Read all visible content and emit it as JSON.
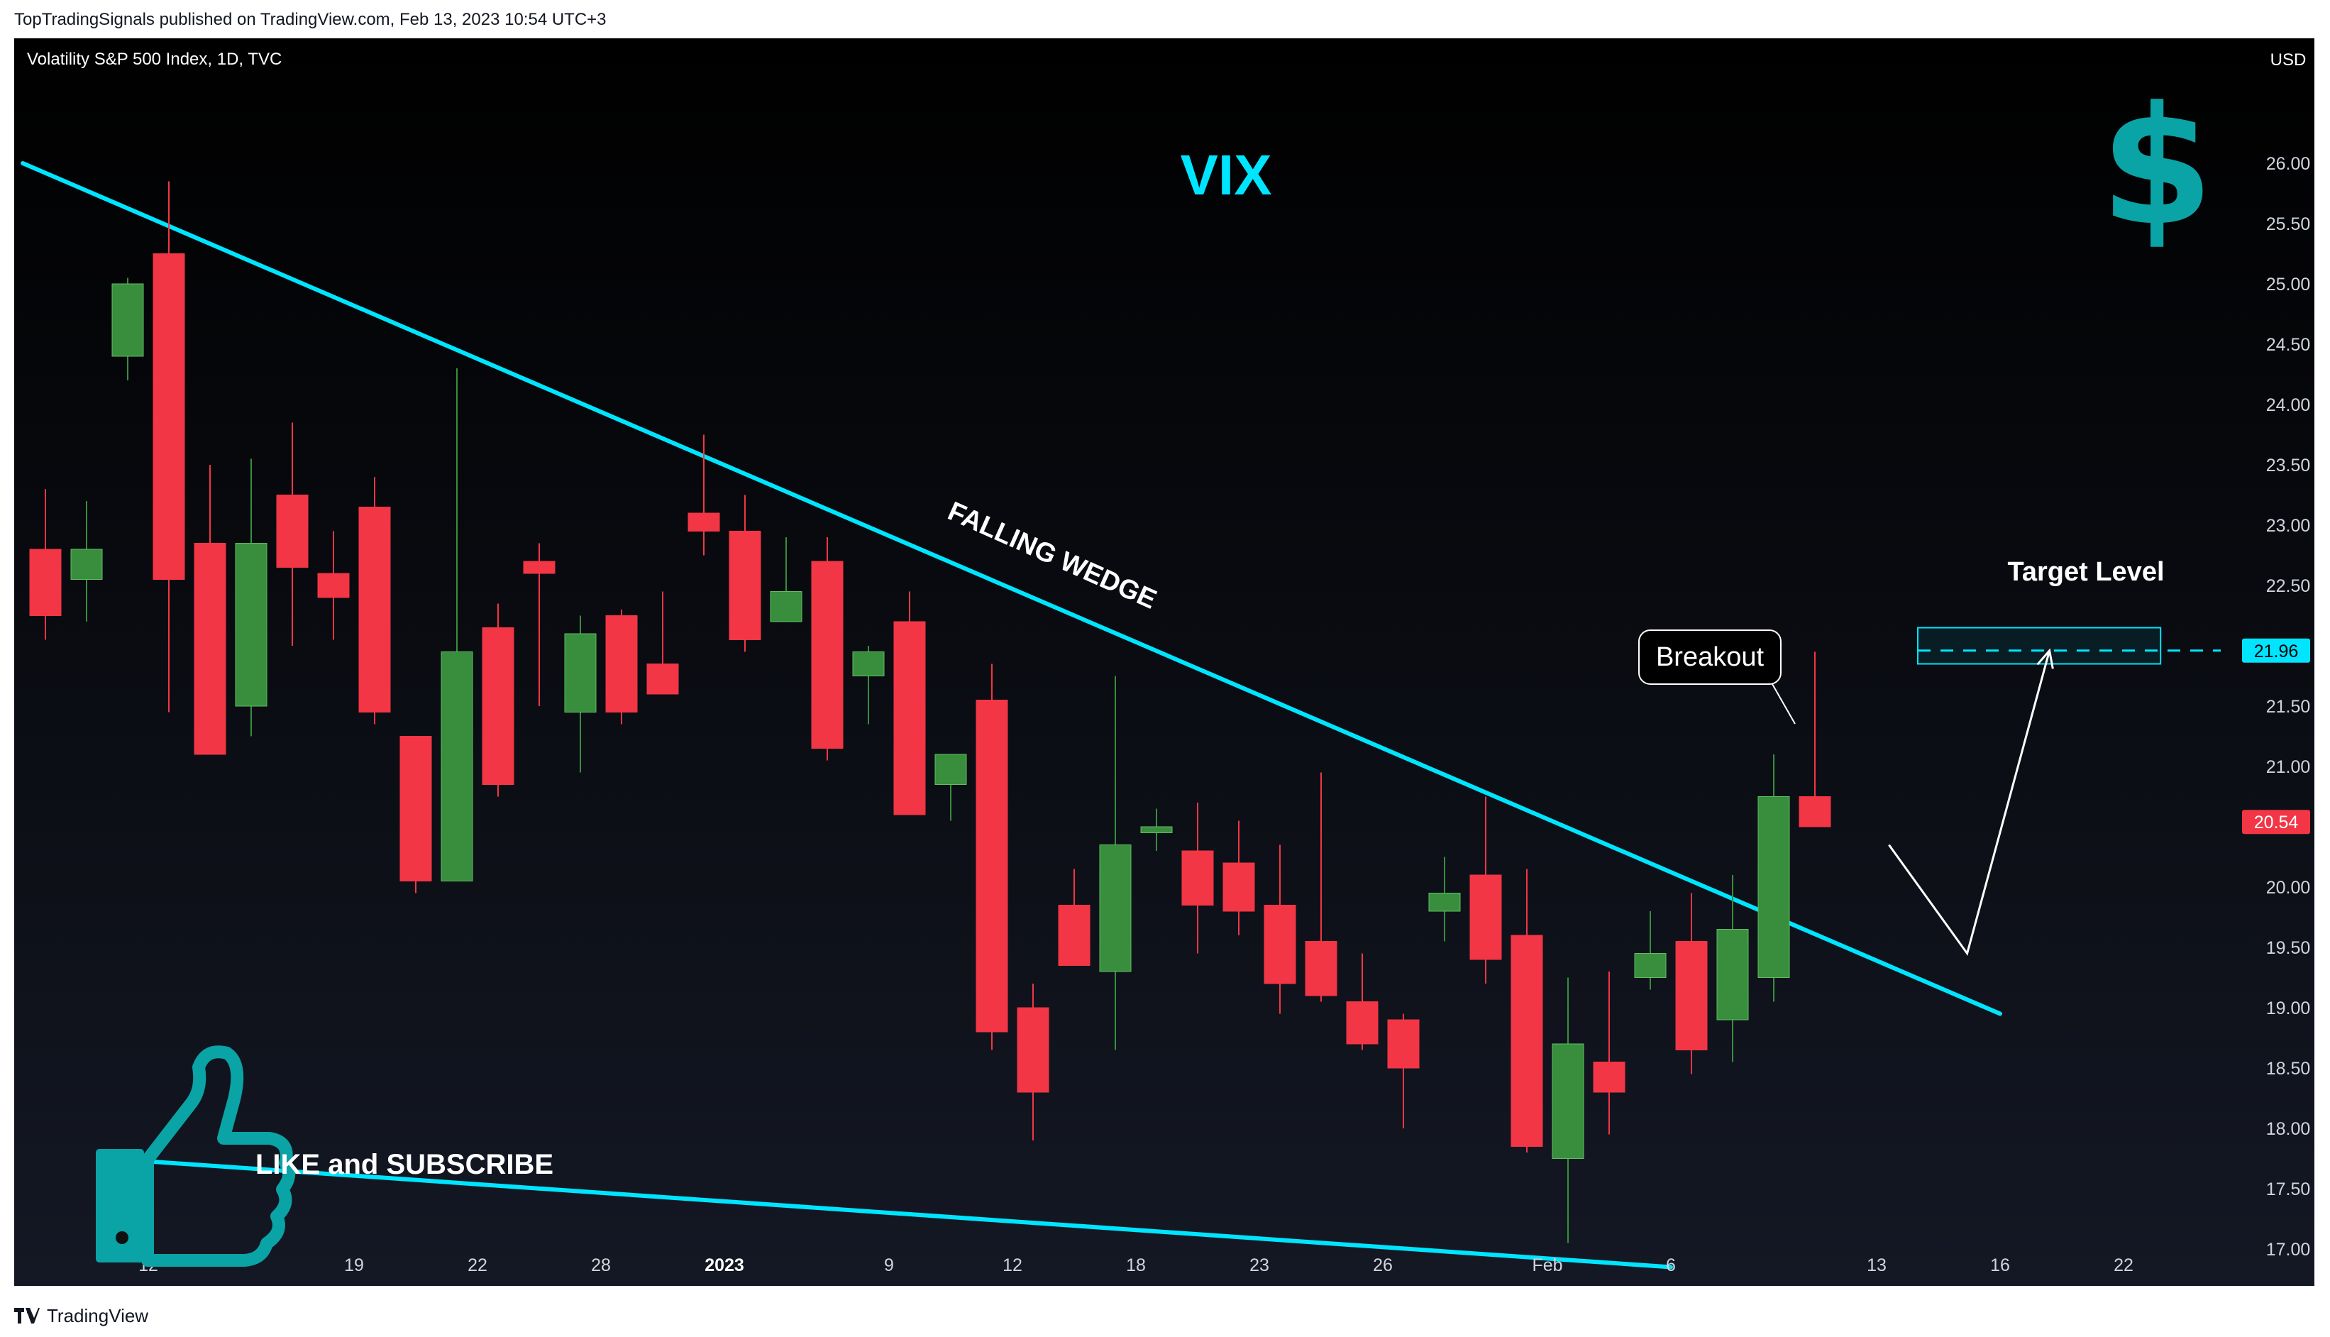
{
  "header": {
    "publisher": "TopTradingSignals published on TradingView.com, Feb 13, 2023 10:54 UTC+3"
  },
  "symbol": {
    "title": "Volatility S&P 500 Index, 1D, TVC",
    "currency": "USD"
  },
  "footer": {
    "brand": "TradingView"
  },
  "annotations": {
    "main_title": "VIX",
    "wedge_label": "FALLING WEDGE",
    "breakout": "Breakout",
    "target": "Target Level",
    "cta": "LIKE and SUBSCRIBE"
  },
  "colors": {
    "up": "#388e3c",
    "down": "#f23645",
    "accent": "#00e5ff",
    "teal_icon": "#0aa3a6",
    "background": "#000000"
  },
  "chart_data": {
    "type": "candlestick",
    "title": "Volatility S&P 500 Index, 1D, TVC",
    "ylim": [
      16.55,
      26.5
    ],
    "y_ticks": [
      "26.00",
      "25.50",
      "25.00",
      "24.50",
      "24.00",
      "23.50",
      "23.00",
      "22.50",
      "22.00",
      "21.50",
      "21.00",
      "20.50",
      "20.00",
      "19.50",
      "19.00",
      "18.50",
      "18.00",
      "17.50",
      "17.00"
    ],
    "x_ticks": [
      {
        "slot": 2.5,
        "label": "12"
      },
      {
        "slot": 7.5,
        "label": "19"
      },
      {
        "slot": 10.5,
        "label": "22"
      },
      {
        "slot": 13.5,
        "label": "28"
      },
      {
        "slot": 16.5,
        "label": "2023",
        "bold": true
      },
      {
        "slot": 20.5,
        "label": "9"
      },
      {
        "slot": 23.5,
        "label": "12"
      },
      {
        "slot": 26.5,
        "label": "18"
      },
      {
        "slot": 29.5,
        "label": "23"
      },
      {
        "slot": 32.5,
        "label": "26"
      },
      {
        "slot": 36.5,
        "label": "Feb"
      },
      {
        "slot": 39.5,
        "label": "6"
      },
      {
        "slot": 44.5,
        "label": "13"
      },
      {
        "slot": 47.5,
        "label": "16"
      },
      {
        "slot": 50.5,
        "label": "22"
      }
    ],
    "candles": [
      {
        "o": 22.8,
        "h": 23.3,
        "l": 22.05,
        "c": 22.25
      },
      {
        "o": 22.55,
        "h": 23.2,
        "l": 22.2,
        "c": 22.8
      },
      {
        "o": 24.4,
        "h": 25.05,
        "l": 24.2,
        "c": 25.0
      },
      {
        "o": 25.25,
        "h": 25.85,
        "l": 21.45,
        "c": 22.55
      },
      {
        "o": 22.85,
        "h": 23.5,
        "l": 21.1,
        "c": 21.1
      },
      {
        "o": 21.5,
        "h": 23.55,
        "l": 21.25,
        "c": 22.85
      },
      {
        "o": 23.25,
        "h": 23.85,
        "l": 22.0,
        "c": 22.65
      },
      {
        "o": 22.6,
        "h": 22.95,
        "l": 22.05,
        "c": 22.4
      },
      {
        "o": 23.15,
        "h": 23.4,
        "l": 21.35,
        "c": 21.45
      },
      {
        "o": 21.25,
        "h": 21.25,
        "l": 19.95,
        "c": 20.05
      },
      {
        "o": 20.05,
        "h": 24.3,
        "l": 20.05,
        "c": 21.95
      },
      {
        "o": 22.15,
        "h": 22.35,
        "l": 20.75,
        "c": 20.85
      },
      {
        "o": 22.7,
        "h": 22.85,
        "l": 21.5,
        "c": 22.6
      },
      {
        "o": 21.45,
        "h": 22.25,
        "l": 20.95,
        "c": 22.1
      },
      {
        "o": 22.25,
        "h": 22.3,
        "l": 21.35,
        "c": 21.45
      },
      {
        "o": 21.85,
        "h": 22.45,
        "l": 21.6,
        "c": 21.6
      },
      {
        "o": 23.1,
        "h": 23.75,
        "l": 22.75,
        "c": 22.95
      },
      {
        "o": 22.95,
        "h": 23.25,
        "l": 21.95,
        "c": 22.05
      },
      {
        "o": 22.2,
        "h": 22.9,
        "l": 22.2,
        "c": 22.45
      },
      {
        "o": 22.7,
        "h": 22.9,
        "l": 21.05,
        "c": 21.15
      },
      {
        "o": 21.75,
        "h": 22.0,
        "l": 21.35,
        "c": 21.95
      },
      {
        "o": 22.2,
        "h": 22.45,
        "l": 20.6,
        "c": 20.6
      },
      {
        "o": 20.85,
        "h": 21.1,
        "l": 20.55,
        "c": 21.1
      },
      {
        "o": 21.55,
        "h": 21.85,
        "l": 18.65,
        "c": 18.8
      },
      {
        "o": 19.0,
        "h": 19.2,
        "l": 17.9,
        "c": 18.3
      },
      {
        "o": 19.85,
        "h": 20.15,
        "l": 19.35,
        "c": 19.35
      },
      {
        "o": 19.3,
        "h": 21.75,
        "l": 18.65,
        "c": 20.35
      },
      {
        "o": 20.45,
        "h": 20.65,
        "l": 20.3,
        "c": 20.5
      },
      {
        "o": 20.3,
        "h": 20.7,
        "l": 19.45,
        "c": 19.85
      },
      {
        "o": 20.2,
        "h": 20.55,
        "l": 19.6,
        "c": 19.8
      },
      {
        "o": 19.85,
        "h": 20.35,
        "l": 18.95,
        "c": 19.2
      },
      {
        "o": 19.55,
        "h": 20.95,
        "l": 19.05,
        "c": 19.1
      },
      {
        "o": 19.05,
        "h": 19.45,
        "l": 18.65,
        "c": 18.7
      },
      {
        "o": 18.9,
        "h": 18.95,
        "l": 18.0,
        "c": 18.5
      },
      {
        "o": 19.8,
        "h": 20.25,
        "l": 19.55,
        "c": 19.95
      },
      {
        "o": 20.1,
        "h": 20.75,
        "l": 19.2,
        "c": 19.4
      },
      {
        "o": 19.6,
        "h": 20.15,
        "l": 17.8,
        "c": 17.85
      },
      {
        "o": 17.75,
        "h": 19.25,
        "l": 17.05,
        "c": 18.7
      },
      {
        "o": 18.55,
        "h": 19.3,
        "l": 17.95,
        "c": 18.3
      },
      {
        "o": 19.25,
        "h": 19.8,
        "l": 19.15,
        "c": 19.45
      },
      {
        "o": 19.55,
        "h": 19.95,
        "l": 18.45,
        "c": 18.65
      },
      {
        "o": 18.9,
        "h": 20.1,
        "l": 18.55,
        "c": 19.65
      },
      {
        "o": 19.25,
        "h": 21.1,
        "l": 19.05,
        "c": 20.75
      },
      {
        "o": 20.75,
        "h": 21.95,
        "l": 20.5,
        "c": 20.5
      }
    ],
    "trend_lines": [
      {
        "label": "upper",
        "from": [
          -0.55,
          26.0
        ],
        "to": [
          47.5,
          18.95
        ]
      },
      {
        "label": "lower",
        "from": [
          1.5,
          17.75
        ],
        "to": [
          39.5,
          16.85
        ]
      }
    ],
    "projection": {
      "points": [
        [
          44.8,
          20.35
        ],
        [
          46.7,
          19.45
        ],
        [
          48.7,
          21.96
        ]
      ]
    },
    "target_level": 21.96,
    "target_zone": [
      21.85,
      22.15
    ],
    "last_price": 20.54
  }
}
